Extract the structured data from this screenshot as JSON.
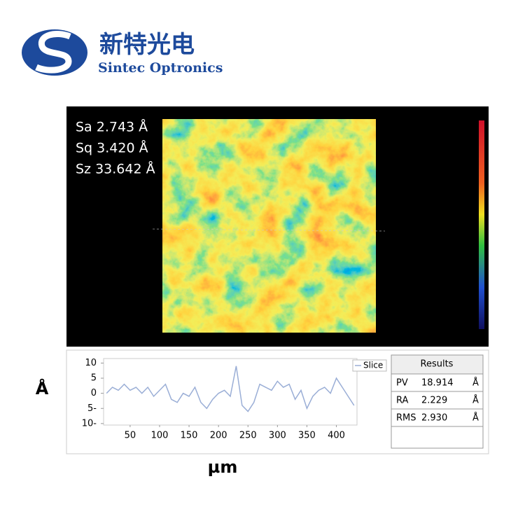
{
  "logo": {
    "chinese": "新特光电",
    "english": "Sintec Optronics"
  },
  "surface": {
    "stats": [
      "Sa 2.743 Å",
      "Sq 3.420 Å",
      "Sz 33.642 Å"
    ]
  },
  "chart_data": {
    "type": "line",
    "x_label": "µm",
    "y_label": "Å",
    "x": [
      10,
      20,
      30,
      40,
      50,
      60,
      70,
      80,
      90,
      100,
      110,
      120,
      130,
      140,
      150,
      160,
      170,
      180,
      190,
      200,
      210,
      220,
      230,
      240,
      250,
      260,
      270,
      280,
      290,
      300,
      310,
      320,
      330,
      340,
      350,
      360,
      370,
      380,
      390,
      400,
      410,
      420,
      430
    ],
    "series": [
      {
        "name": "Slice",
        "color": "#9aaed6",
        "values": [
          0,
          2,
          1,
          3,
          1,
          2,
          0,
          2,
          -1,
          1,
          3,
          -2,
          -3,
          0,
          -1,
          2,
          -3,
          -5,
          -2,
          0,
          1,
          -1,
          9,
          -4,
          -6,
          -3,
          3,
          2,
          1,
          4,
          2,
          3,
          -2,
          1,
          -5,
          -1,
          1,
          2,
          0,
          5,
          2,
          -1,
          -4
        ]
      }
    ],
    "xlim": [
      5,
      435
    ],
    "xticks": [
      50,
      100,
      150,
      200,
      250,
      300,
      350,
      400
    ],
    "ylim": [
      -10.5,
      11.5
    ],
    "yticks": [
      10,
      5,
      0,
      {
        "value": -5,
        "label": "5-"
      },
      {
        "value": -10,
        "label": "10-"
      }
    ]
  },
  "results": {
    "title": "Results",
    "rows": [
      [
        "PV",
        "18.914",
        "Å"
      ],
      [
        "RA",
        "2.229",
        "Å"
      ],
      [
        "RMS",
        "2.930",
        "Å"
      ]
    ]
  }
}
